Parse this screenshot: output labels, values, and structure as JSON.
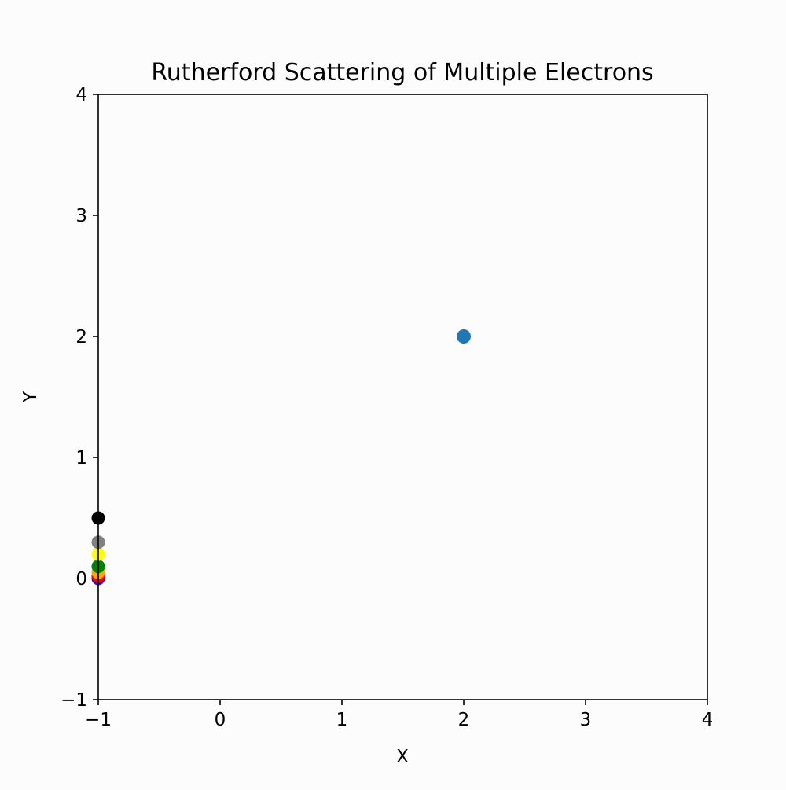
{
  "chart_data": {
    "type": "scatter",
    "title": "Rutherford Scattering of Multiple Electrons",
    "xlabel": "X",
    "ylabel": "Y",
    "xlim": [
      -1,
      4
    ],
    "ylim": [
      -1,
      4
    ],
    "xticks": [
      -1,
      0,
      1,
      2,
      3,
      4
    ],
    "yticks": [
      -1,
      0,
      1,
      2,
      3,
      4
    ],
    "tick_labels_x": [
      "−1",
      "0",
      "1",
      "2",
      "3",
      "4"
    ],
    "tick_labels_y": [
      "−1",
      "0",
      "1",
      "2",
      "3",
      "4"
    ],
    "grid": false,
    "nucleus": {
      "x": 2,
      "y": 2,
      "color": "#1f77b4"
    },
    "electrons": [
      {
        "x": -1,
        "y": 0.0,
        "color": "#800080"
      },
      {
        "x": -1,
        "y": 0.01,
        "color": "#0000ff"
      },
      {
        "x": -1,
        "y": 0.02,
        "color": "#ff0000"
      },
      {
        "x": -1,
        "y": 0.05,
        "color": "#ffa500"
      },
      {
        "x": -1,
        "y": 0.1,
        "color": "#008000"
      },
      {
        "x": -1,
        "y": 0.2,
        "color": "#ffff00"
      },
      {
        "x": -1,
        "y": 0.3,
        "color": "#808080"
      },
      {
        "x": -1,
        "y": 0.5,
        "color": "#000000"
      }
    ]
  }
}
